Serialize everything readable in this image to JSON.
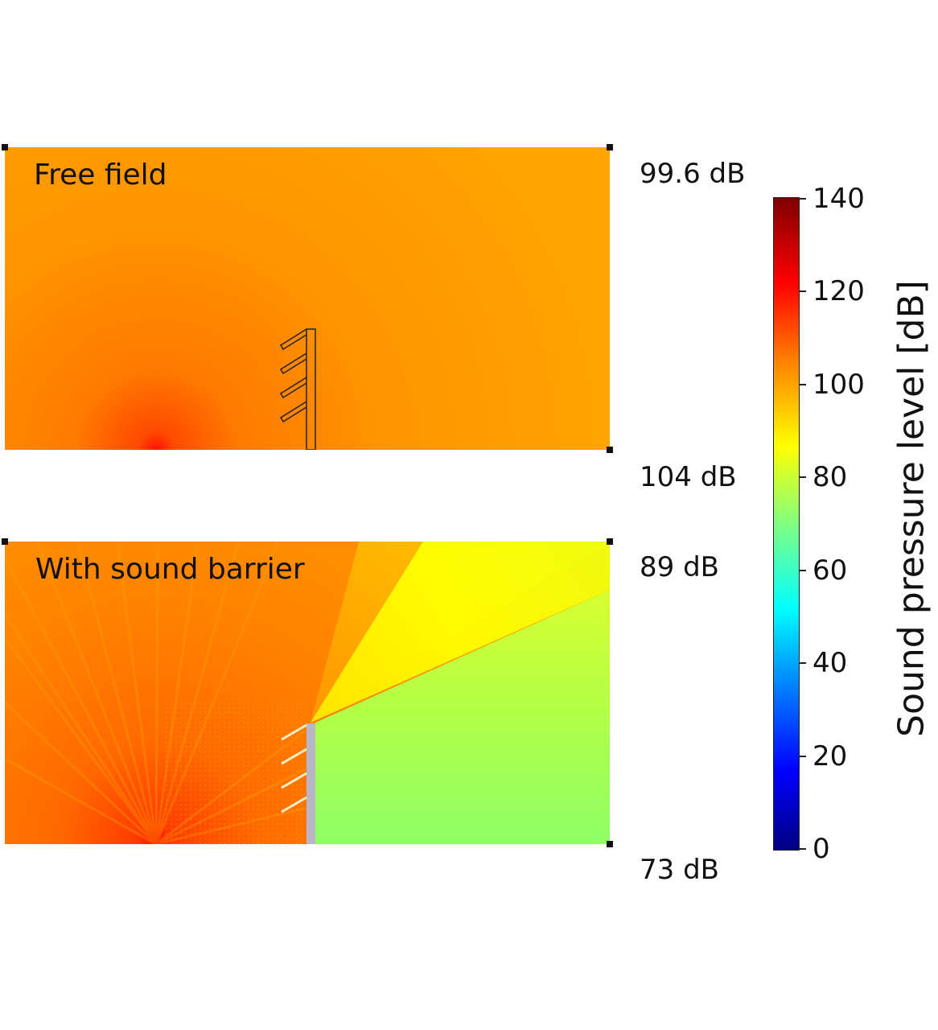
{
  "panels": [
    {
      "title": "Free field",
      "top_level": "99.6 dB",
      "bottom_level": "104 dB"
    },
    {
      "title": "With sound barrier",
      "top_level": "89 dB",
      "bottom_level": "73 dB"
    }
  ],
  "colorbar": {
    "title": "Sound pressure level [dB]",
    "min": 0,
    "max": 140,
    "ticks": [
      "0",
      "20",
      "40",
      "60",
      "80",
      "100",
      "120",
      "140"
    ],
    "colormap": "jet"
  },
  "colors": {
    "free_field_fill": "#ff9c00",
    "source_hot": "#ff1a00",
    "barrier_wall": "#b9b6c8",
    "shadow_zone": "#96ff66",
    "bright_zone": "#ffff00"
  }
}
